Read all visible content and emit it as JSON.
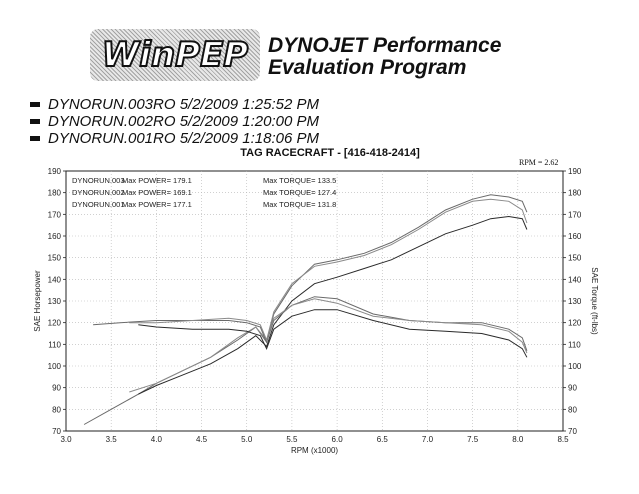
{
  "header": {
    "logo_text": "WinPEP",
    "title_line1": "DYNOJET Performance",
    "title_line2": "Evaluation Program"
  },
  "runs": [
    {
      "label": "DYNORUN.003RO  5/2/2009 1:25:52 PM"
    },
    {
      "label": "DYNORUN.002RO  5/2/2009 1:20:00 PM"
    },
    {
      "label": "DYNORUN.001RO  5/2/2009 1:18:06 PM"
    }
  ],
  "chart_title": "TAG RACECRAFT - [416-418-2414]",
  "rpm_note": "RPM = 2.62",
  "chart_data": {
    "type": "line",
    "title": "TAG RACECRAFT - [416-418-2414]",
    "xlabel": "RPM (x1000)",
    "ylabel": "SAE Horsepower",
    "y2label": "SAE Torque (ft-lbs)",
    "xlim": [
      3.0,
      8.5
    ],
    "ylim": [
      70,
      190
    ],
    "y2lim": [
      70,
      190
    ],
    "x_ticks": [
      "3.0",
      "3.5",
      "4.0",
      "4.5",
      "5.0",
      "5.5",
      "6.0",
      "6.5",
      "7.0",
      "7.5",
      "8.0",
      "8.5"
    ],
    "y_ticks": [
      "70",
      "80",
      "90",
      "100",
      "110",
      "120",
      "130",
      "140",
      "150",
      "160",
      "170",
      "180",
      "190"
    ],
    "grid": true,
    "legend": [
      {
        "run": "DYNORUN.003",
        "power": "Max POWER= 179.1",
        "torque": "Max TORQUE= 133.5"
      },
      {
        "run": "DYNORUN.002",
        "power": "Max POWER= 169.1",
        "torque": "Max TORQUE= 127.4"
      },
      {
        "run": "DYNORUN.001",
        "power": "Max POWER= 177.1",
        "torque": "Max TORQUE= 131.8"
      }
    ],
    "series": [
      {
        "name": "DYNORUN.003",
        "kind": "power",
        "x": [
          3.2,
          3.5,
          3.8,
          4.0,
          4.3,
          4.6,
          4.9,
          5.1,
          5.22,
          5.3,
          5.5,
          5.75,
          6.0,
          6.3,
          6.6,
          6.9,
          7.2,
          7.5,
          7.7,
          7.9,
          8.05,
          8.1
        ],
        "values": [
          73,
          80,
          87,
          92,
          98,
          104,
          112,
          118,
          111,
          124,
          137,
          147,
          149,
          152,
          157,
          164,
          172,
          177,
          179,
          178,
          176,
          171
        ]
      },
      {
        "name": "DYNORUN.001",
        "kind": "power",
        "x": [
          3.7,
          4.0,
          4.3,
          4.6,
          4.9,
          5.1,
          5.22,
          5.3,
          5.5,
          5.75,
          6.0,
          6.3,
          6.6,
          6.9,
          7.2,
          7.5,
          7.7,
          7.9,
          8.05,
          8.1
        ],
        "values": [
          88,
          92,
          98,
          104,
          113,
          118,
          112,
          125,
          138,
          146,
          148,
          151,
          156,
          163,
          171,
          176,
          177,
          176,
          172,
          166
        ]
      },
      {
        "name": "DYNORUN.002",
        "kind": "power",
        "x": [
          3.8,
          4.0,
          4.3,
          4.6,
          4.9,
          5.1,
          5.22,
          5.3,
          5.5,
          5.75,
          6.0,
          6.3,
          6.6,
          6.9,
          7.2,
          7.5,
          7.7,
          7.9,
          8.05,
          8.1
        ],
        "values": [
          87,
          91,
          96,
          101,
          108,
          114,
          109,
          119,
          130,
          138,
          141,
          145,
          149,
          155,
          161,
          165,
          168,
          169,
          168,
          163
        ]
      },
      {
        "name": "DYNORUN.003",
        "kind": "torque",
        "x": [
          3.3,
          3.6,
          4.0,
          4.4,
          4.8,
          5.0,
          5.15,
          5.22,
          5.3,
          5.5,
          5.75,
          6.0,
          6.4,
          6.8,
          7.2,
          7.6,
          7.9,
          8.05,
          8.1
        ],
        "values": [
          119,
          120,
          121,
          121,
          121,
          120,
          118,
          111,
          121,
          128,
          132,
          131,
          124,
          121,
          120,
          120,
          117,
          113,
          107
        ]
      },
      {
        "name": "DYNORUN.001",
        "kind": "torque",
        "x": [
          3.7,
          4.0,
          4.4,
          4.8,
          5.0,
          5.15,
          5.22,
          5.3,
          5.5,
          5.75,
          6.0,
          6.4,
          6.8,
          7.2,
          7.6,
          7.9,
          8.05,
          8.1
        ],
        "values": [
          120,
          120,
          121,
          122,
          121,
          119,
          112,
          122,
          128,
          131,
          129,
          123,
          121,
          120,
          119,
          116,
          111,
          106
        ]
      },
      {
        "name": "DYNORUN.002",
        "kind": "torque",
        "x": [
          3.8,
          4.0,
          4.4,
          4.8,
          5.0,
          5.15,
          5.22,
          5.3,
          5.5,
          5.75,
          6.0,
          6.4,
          6.8,
          7.2,
          7.6,
          7.9,
          8.05,
          8.1
        ],
        "values": [
          119,
          118,
          117,
          117,
          116,
          114,
          108,
          117,
          123,
          126,
          126,
          121,
          117,
          116,
          115,
          112,
          108,
          104
        ]
      }
    ]
  }
}
